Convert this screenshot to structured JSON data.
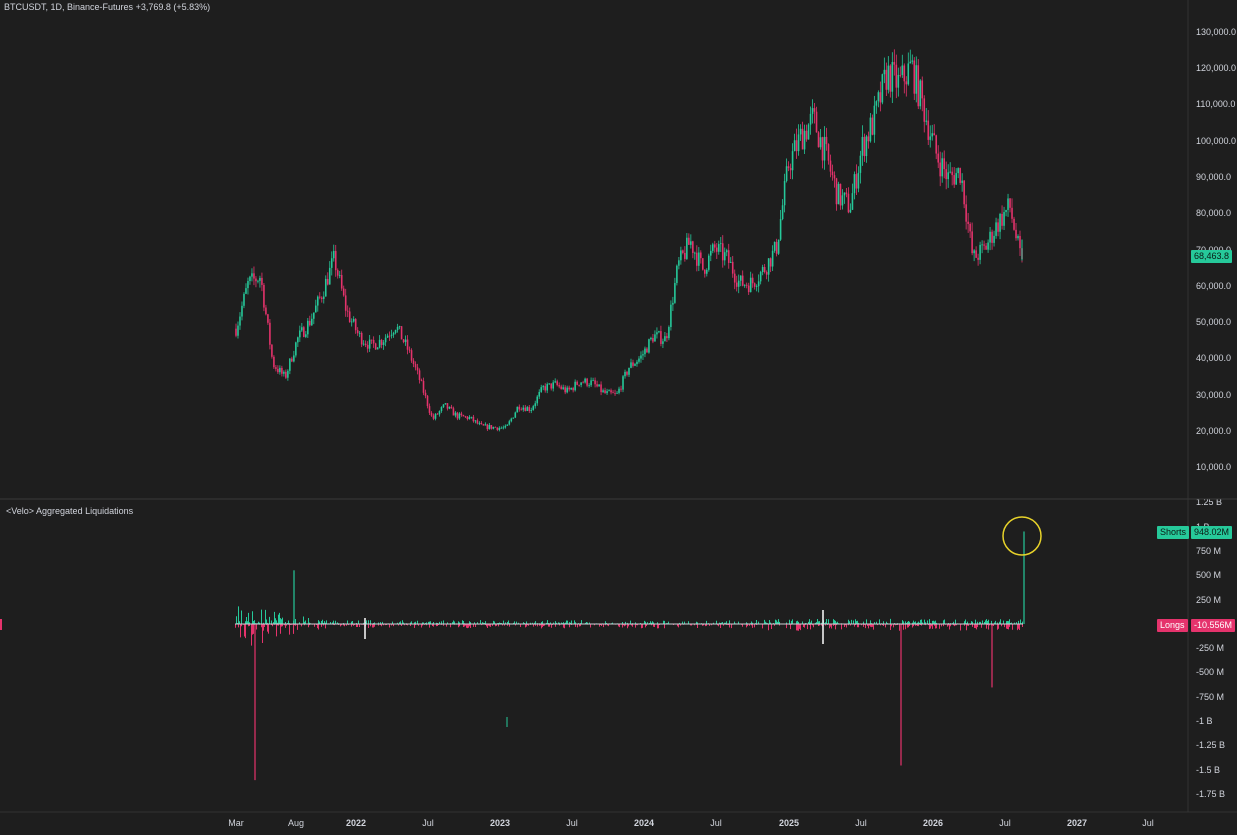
{
  "header": {
    "symbol_line": "BTCUSDT, 1D, Binance-Futures",
    "change": "+3,769.8 (+5.83%)"
  },
  "indicator": {
    "title": "<Velo> Aggregated Liquidations"
  },
  "colors": {
    "background": "#1e1e1e",
    "up": "#26c99a",
    "down": "#e5336c",
    "grid_divider": "#3a3a3a",
    "highlight_circle": "#e8d32a",
    "text": "#d1d4dc"
  },
  "badges": {
    "last_price": "68,463.8",
    "shorts_label": "Shorts",
    "shorts_value": "948.02M",
    "longs_label": "Longs",
    "longs_value": "-10.556M"
  },
  "chart_data": [
    {
      "type": "line",
      "title": "BTCUSDT, 1D, Binance-Futures",
      "series": [
        {
          "name": "BTCUSDT",
          "x": [
            "2021-03",
            "2021-04",
            "2021-05",
            "2021-06",
            "2021-07",
            "2021-08",
            "2021-09",
            "2021-10",
            "2021-11",
            "2021-12",
            "2022-01",
            "2022-02",
            "2022-03",
            "2022-04",
            "2022-05",
            "2022-06",
            "2022-07",
            "2022-08",
            "2022-09",
            "2022-10",
            "2022-11",
            "2022-12",
            "2023-01",
            "2023-02",
            "2023-03",
            "2023-04",
            "2023-05",
            "2023-06",
            "2023-07",
            "2023-08",
            "2023-09",
            "2023-10",
            "2023-11",
            "2023-12",
            "2024-01",
            "2024-02",
            "2024-03",
            "2024-04",
            "2024-05",
            "2024-06",
            "2024-07",
            "2024-08",
            "2024-09",
            "2024-10",
            "2024-11",
            "2024-12",
            "2025-01",
            "2025-02",
            "2025-03",
            "2025-04",
            "2025-05",
            "2025-06",
            "2025-07",
            "2025-08",
            "2025-09",
            "2025-10",
            "2025-11",
            "2025-12",
            "2026-01",
            "2026-02",
            "2026-03",
            "2026-04",
            "2026-05",
            "2026-06",
            "2026-07"
          ],
          "values": [
            45000,
            58000,
            60000,
            35000,
            31000,
            42000,
            47000,
            55000,
            65000,
            50000,
            43000,
            40000,
            42000,
            46000,
            39000,
            30000,
            19000,
            23000,
            20000,
            19500,
            17000,
            16800,
            16500,
            23000,
            22000,
            28000,
            29000,
            27000,
            30000,
            29500,
            26500,
            26000,
            34000,
            37000,
            43000,
            42000,
            63000,
            70000,
            62000,
            68000,
            65000,
            58000,
            58000,
            62000,
            68000,
            92000,
            100000,
            105000,
            95000,
            83000,
            80000,
            97000,
            105000,
            118000,
            115000,
            120000,
            108000,
            95000,
            88000,
            90000,
            65000,
            68000,
            75000,
            80000,
            63000
          ]
        }
      ],
      "y_ticks": [
        "130,000.0",
        "120,000.0",
        "110,000.0",
        "100,000.0",
        "90,000.0",
        "80,000.0",
        "70,000.0",
        "60,000.0",
        "50,000.0",
        "40,000.0",
        "30,000.0",
        "20,000.0",
        "10,000.0"
      ],
      "x_ticks": [
        "Mar",
        "Aug",
        "2022",
        "Jul",
        "2023",
        "Jul",
        "2024",
        "Jul",
        "2025",
        "Jul",
        "2026",
        "Jul",
        "2027",
        "Jul"
      ],
      "ylim": [
        0,
        135000
      ]
    },
    {
      "type": "bar",
      "title": "<Velo> Aggregated Liquidations",
      "series": [
        {
          "name": "Shorts",
          "last_value": "948.02M"
        },
        {
          "name": "Longs",
          "last_value": "-10.556M"
        }
      ],
      "notable_spikes": [
        {
          "date": "2021-04",
          "value": -1600000000
        },
        {
          "date": "2021-05",
          "value": 550000000
        },
        {
          "date": "2025-10",
          "value": -1450000000
        },
        {
          "date": "2026-02",
          "value": -650000000
        },
        {
          "date": "2026-07",
          "value": 948020000
        }
      ],
      "y_ticks": [
        "1.25 B",
        "1 B",
        "750 M",
        "500 M",
        "250 M",
        "0",
        "-250 M",
        "-500 M",
        "-750 M",
        "-1 B",
        "-1.25 B",
        "-1.5 B",
        "-1.75 B"
      ],
      "ylim": [
        -1875000000,
        1300000000
      ]
    }
  ]
}
